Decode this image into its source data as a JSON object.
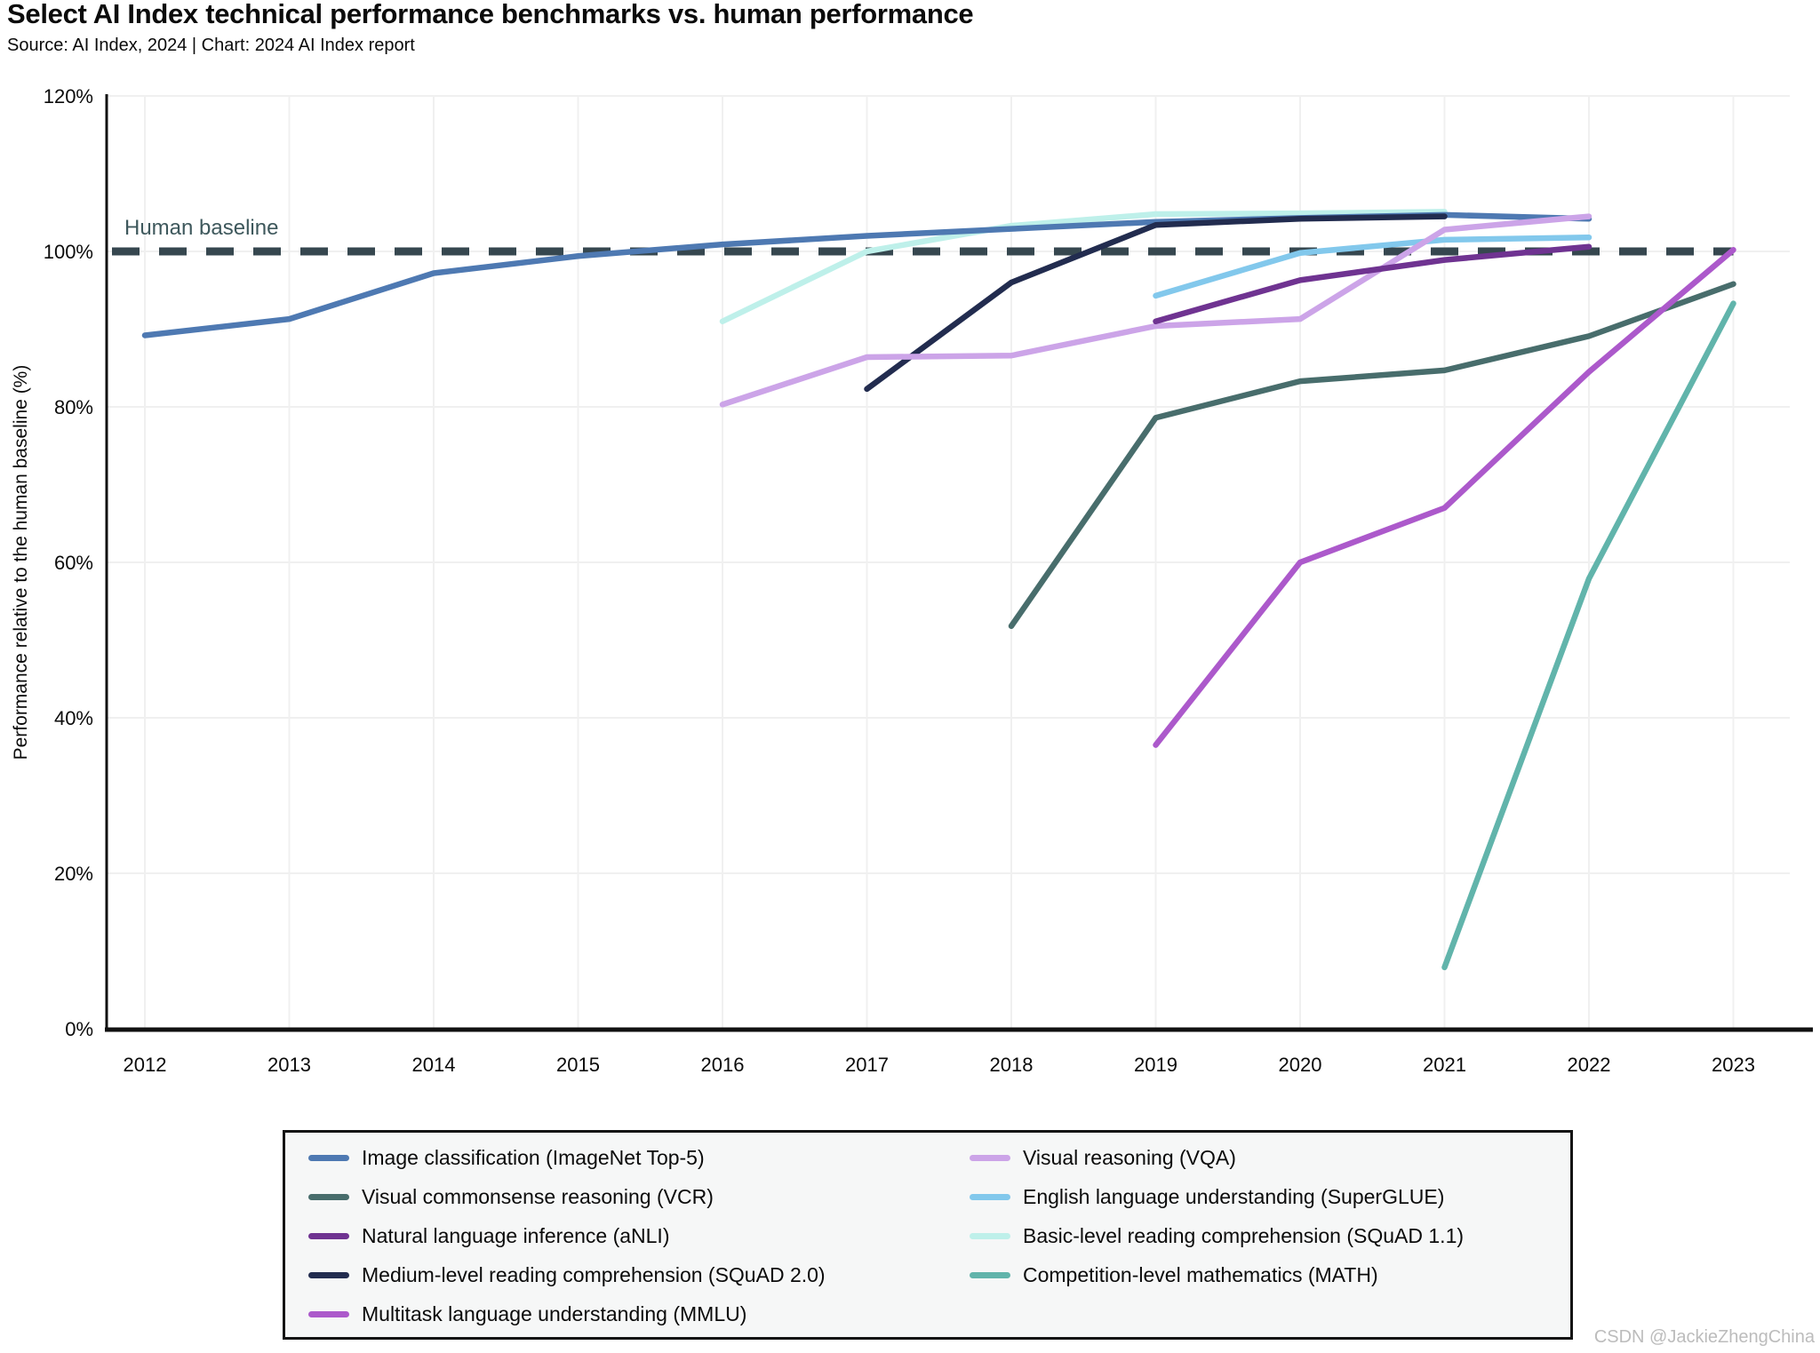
{
  "title": "Select AI Index technical performance benchmarks vs. human performance",
  "subtitle": "Source: AI Index, 2024 | Chart: 2024 AI Index report",
  "watermark": "CSDN @JackieZhengChina",
  "colors": {
    "baseline_dash": "#36474f",
    "baseline_label": "#3e585c",
    "axis": "#111111",
    "gridline": "#f0f0f0",
    "legend_bg": "#f6f7f7",
    "legend_border": "#141414"
  },
  "chart_data": {
    "type": "line",
    "title": "Select AI Index technical performance benchmarks vs. human performance",
    "xlabel": "",
    "ylabel": "Performance relative to the human baseline (%)",
    "xlim": [
      2012,
      2023
    ],
    "ylim": [
      0,
      120
    ],
    "x_ticks": [
      2012,
      2013,
      2014,
      2015,
      2016,
      2017,
      2018,
      2019,
      2020,
      2021,
      2022,
      2023
    ],
    "y_ticks": [
      0,
      20,
      40,
      60,
      80,
      100,
      120
    ],
    "y_tick_suffix": "%",
    "grid": true,
    "legend_position": "bottom",
    "baseline": {
      "value": 100,
      "label": "Human baseline"
    },
    "series": [
      {
        "name": "Image classification (ImageNet Top-5)",
        "color": "#4e79b2",
        "points": [
          [
            2012,
            89.2
          ],
          [
            2013,
            91.3
          ],
          [
            2014,
            97.2
          ],
          [
            2015,
            99.4
          ],
          [
            2016,
            100.9
          ],
          [
            2017,
            102.0
          ],
          [
            2018,
            102.9
          ],
          [
            2019,
            103.8
          ],
          [
            2020,
            104.3
          ],
          [
            2021,
            104.7
          ],
          [
            2022,
            104.2
          ]
        ]
      },
      {
        "name": "Visual commonsense reasoning (VCR)",
        "color": "#486d6c",
        "points": [
          [
            2018,
            51.8
          ],
          [
            2019,
            78.6
          ],
          [
            2020,
            83.3
          ],
          [
            2021,
            84.7
          ],
          [
            2022,
            89.1
          ],
          [
            2023,
            95.8
          ]
        ]
      },
      {
        "name": "Natural language inference (aNLI)",
        "color": "#6f3391",
        "points": [
          [
            2019,
            91.0
          ],
          [
            2020,
            96.3
          ],
          [
            2021,
            98.9
          ],
          [
            2022,
            100.6
          ]
        ]
      },
      {
        "name": "Medium-level reading comprehension (SQuAD 2.0)",
        "color": "#222c4f",
        "points": [
          [
            2017,
            82.3
          ],
          [
            2018,
            96.0
          ],
          [
            2019,
            103.4
          ],
          [
            2020,
            104.2
          ],
          [
            2021,
            104.5
          ]
        ]
      },
      {
        "name": "Multitask language understanding (MMLU)",
        "color": "#ac59cb",
        "points": [
          [
            2019,
            36.5
          ],
          [
            2020,
            60.0
          ],
          [
            2021,
            67.0
          ],
          [
            2022,
            84.5
          ],
          [
            2023,
            100.2
          ]
        ]
      },
      {
        "name": "Visual reasoning (VQA)",
        "color": "#cca4e8",
        "points": [
          [
            2016,
            80.3
          ],
          [
            2017,
            86.4
          ],
          [
            2018,
            86.6
          ],
          [
            2019,
            90.4
          ],
          [
            2020,
            91.3
          ],
          [
            2021,
            102.8
          ],
          [
            2022,
            104.5
          ]
        ]
      },
      {
        "name": "English language understanding (SuperGLUE)",
        "color": "#82c8ec",
        "points": [
          [
            2019,
            94.3
          ],
          [
            2020,
            99.8
          ],
          [
            2021,
            101.5
          ],
          [
            2022,
            101.8
          ]
        ]
      },
      {
        "name": "Basic-level reading comprehension (SQuAD 1.1)",
        "color": "#bef0ea",
        "points": [
          [
            2016,
            91.0
          ],
          [
            2017,
            100.0
          ],
          [
            2018,
            103.3
          ],
          [
            2019,
            104.8
          ],
          [
            2020,
            104.9
          ],
          [
            2021,
            105.1
          ]
        ]
      },
      {
        "name": "Competition-level mathematics (MATH)",
        "color": "#61b4ab",
        "points": [
          [
            2021,
            7.9
          ],
          [
            2022,
            57.9
          ],
          [
            2023,
            93.3
          ]
        ]
      }
    ]
  }
}
